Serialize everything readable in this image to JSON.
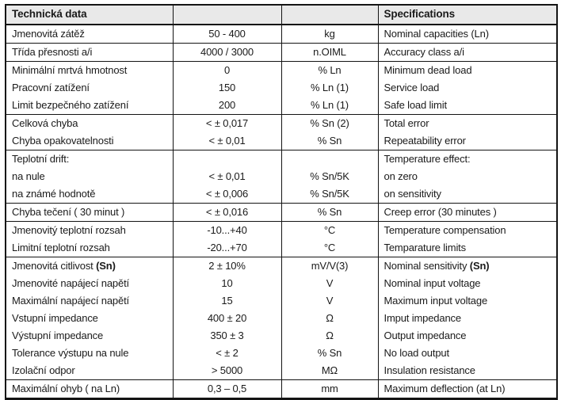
{
  "colors": {
    "header_bg": "#e9e9e9",
    "border": "#141414",
    "text": "#1a1a1a"
  },
  "table": {
    "header": {
      "czech": "Technická data",
      "value": "",
      "unit": "",
      "english": "Specifications"
    },
    "rows": [
      {
        "czech": "Jmenovitá zátěž",
        "value": "50 - 400",
        "unit": "kg",
        "english": "Nominal capacities (Ln)",
        "group_end": true
      },
      {
        "czech": "Třída přesnosti a/i",
        "value": "4000 / 3000",
        "unit": "n.OIML",
        "english": "Accuracy class a/i",
        "group_end": true
      },
      {
        "czech": "Minimální mrtvá hmotnost",
        "value": "0",
        "unit": "% Ln",
        "english": "Minimum dead load",
        "group_end": false
      },
      {
        "czech": "Pracovní zatížení",
        "value": "150",
        "unit": "% Ln (1)",
        "english": "Service load",
        "group_end": false
      },
      {
        "czech": "Limit bezpečného zatížení",
        "value": "200",
        "unit": "% Ln (1)",
        "english": "Safe load limit",
        "group_end": true
      },
      {
        "czech": "Celková chyba",
        "value": "< ± 0,017",
        "unit": "% Sn (2)",
        "english": "Total error",
        "group_end": false
      },
      {
        "czech": "Chyba opakovatelnosti",
        "value": "< ± 0,01",
        "unit": "% Sn",
        "english": "Repeatability error",
        "group_end": true
      },
      {
        "czech": "Teplotní drift:",
        "value": "",
        "unit": "",
        "english": "Temperature effect:",
        "group_end": false
      },
      {
        "czech": "na nule",
        "value": "< ± 0,01",
        "unit": "% Sn/5K",
        "english": "on zero",
        "group_end": false
      },
      {
        "czech": "na známé hodnotě",
        "value": "< ± 0,006",
        "unit": "% Sn/5K",
        "english": "on sensitivity",
        "group_end": true
      },
      {
        "czech": "Chyba tečení ( 30 minut )",
        "value": "< ± 0,016",
        "unit": "% Sn",
        "english": "Creep error (30 minutes )",
        "group_end": true
      },
      {
        "czech": "Jmenovitý teplotní rozsah",
        "value": "-10...+40",
        "unit": "°C",
        "english": "Temperature compensation",
        "group_end": false
      },
      {
        "czech": "Limitní teplotní rozsah",
        "value": "-20...+70",
        "unit": "°C",
        "english": "Temparature limits",
        "group_end": true
      },
      {
        "czech": "Jmenovitá citlivost",
        "czech_bold": "(Sn)",
        "value": "2 ± 10%",
        "unit": "mV/V(3)",
        "english": "Nominal sensitivity",
        "english_bold": "(Sn)",
        "group_end": false
      },
      {
        "czech": "Jmenovité napájecí napětí",
        "value": "10",
        "unit": "V",
        "english": "Nominal input voltage",
        "group_end": false
      },
      {
        "czech": "Maximální napájecí napětí",
        "value": "15",
        "unit": "V",
        "english": "Maximum input voltage",
        "group_end": false
      },
      {
        "czech": "Vstupní impedance",
        "value": "400 ± 20",
        "unit": "Ω",
        "english": "Imput impedance",
        "group_end": false
      },
      {
        "czech": "Výstupní impedance",
        "value": "350 ± 3",
        "unit": "Ω",
        "english": "Output impedance",
        "group_end": false
      },
      {
        "czech": "Tolerance výstupu na nule",
        "value": "< ± 2",
        "unit": "% Sn",
        "english": "No load output",
        "group_end": false
      },
      {
        "czech": "Izolační odpor",
        "value": "> 5000",
        "unit": "MΩ",
        "english": "Insulation resistance",
        "group_end": true
      },
      {
        "czech": "Maximální ohyb ( na Ln)",
        "value": "0,3 – 0,5",
        "unit": "mm",
        "english": "Maximum deflection (at Ln)",
        "group_end": false
      }
    ]
  }
}
